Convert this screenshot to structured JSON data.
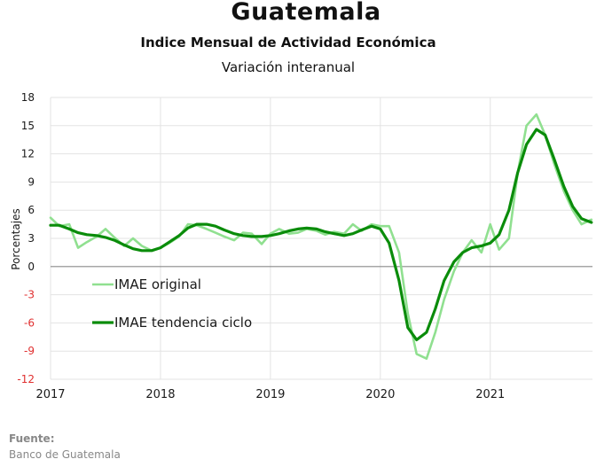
{
  "header": {
    "title": "Guatemala",
    "subtitle": "Indice Mensual de  Actividad Económica",
    "subtitle2": "Variación interanual"
  },
  "footer": {
    "source_label": "Fuente:",
    "source_text": "Banco de Guatemala"
  },
  "chart_data": {
    "type": "line",
    "ylabel": "Porcentajes",
    "ylim": [
      -12,
      18
    ],
    "yticks": [
      18,
      15,
      12,
      9,
      6,
      3,
      0,
      -3,
      -6,
      -9,
      -12
    ],
    "xlim": [
      2017.0,
      2021.93
    ],
    "xticks": [
      "2017",
      "2018",
      "2019",
      "2020",
      "2021"
    ],
    "grid": true,
    "legend_position": "lower-left",
    "series": [
      {
        "name": "IMAE original",
        "color": "#90e090",
        "x": [
          2017.0,
          2017.08,
          2017.17,
          2017.25,
          2017.33,
          2017.42,
          2017.5,
          2017.58,
          2017.67,
          2017.75,
          2017.83,
          2017.92,
          2018.0,
          2018.08,
          2018.17,
          2018.25,
          2018.33,
          2018.42,
          2018.5,
          2018.58,
          2018.67,
          2018.75,
          2018.83,
          2018.92,
          2019.0,
          2019.08,
          2019.17,
          2019.25,
          2019.33,
          2019.42,
          2019.5,
          2019.58,
          2019.67,
          2019.75,
          2019.83,
          2019.92,
          2020.0,
          2020.08,
          2020.17,
          2020.25,
          2020.33,
          2020.42,
          2020.5,
          2020.58,
          2020.67,
          2020.75,
          2020.83,
          2020.92,
          2021.0,
          2021.08,
          2021.17,
          2021.25,
          2021.33,
          2021.42,
          2021.5,
          2021.58,
          2021.67,
          2021.75,
          2021.83,
          2021.92
        ],
        "y": [
          5.2,
          4.3,
          4.5,
          2.0,
          2.6,
          3.2,
          4.0,
          3.1,
          2.2,
          3.0,
          2.2,
          1.7,
          2.0,
          2.5,
          3.2,
          4.5,
          4.4,
          4.0,
          3.6,
          3.2,
          2.8,
          3.6,
          3.5,
          2.4,
          3.5,
          4.0,
          3.5,
          3.6,
          4.0,
          3.8,
          3.4,
          3.7,
          3.5,
          4.5,
          3.8,
          4.5,
          4.3,
          4.3,
          1.5,
          -5.0,
          -9.3,
          -9.8,
          -7.0,
          -3.5,
          -0.5,
          1.5,
          2.8,
          1.5,
          4.5,
          1.8,
          3.0,
          10.0,
          15.0,
          16.2,
          14.0,
          11.0,
          8.0,
          6.0,
          4.5,
          5.0
        ]
      },
      {
        "name": "IMAE tendencia ciclo",
        "color": "#0a8c0a",
        "x": [
          2017.0,
          2017.08,
          2017.17,
          2017.25,
          2017.33,
          2017.42,
          2017.5,
          2017.58,
          2017.67,
          2017.75,
          2017.83,
          2017.92,
          2018.0,
          2018.08,
          2018.17,
          2018.25,
          2018.33,
          2018.42,
          2018.5,
          2018.58,
          2018.67,
          2018.75,
          2018.83,
          2018.92,
          2019.0,
          2019.08,
          2019.17,
          2019.25,
          2019.33,
          2019.42,
          2019.5,
          2019.58,
          2019.67,
          2019.75,
          2019.83,
          2019.92,
          2020.0,
          2020.08,
          2020.17,
          2020.25,
          2020.33,
          2020.42,
          2020.5,
          2020.58,
          2020.67,
          2020.75,
          2020.83,
          2020.92,
          2021.0,
          2021.08,
          2021.17,
          2021.25,
          2021.33,
          2021.42,
          2021.5,
          2021.58,
          2021.67,
          2021.75,
          2021.83,
          2021.92
        ],
        "y": [
          4.4,
          4.4,
          4.0,
          3.6,
          3.4,
          3.3,
          3.1,
          2.8,
          2.3,
          1.9,
          1.7,
          1.7,
          2.0,
          2.6,
          3.3,
          4.1,
          4.5,
          4.5,
          4.3,
          3.9,
          3.5,
          3.3,
          3.2,
          3.2,
          3.3,
          3.5,
          3.8,
          4.0,
          4.1,
          4.0,
          3.7,
          3.5,
          3.3,
          3.5,
          3.9,
          4.3,
          4.0,
          2.5,
          -1.5,
          -6.5,
          -7.8,
          -7.0,
          -4.5,
          -1.5,
          0.5,
          1.5,
          2.0,
          2.2,
          2.5,
          3.4,
          6.0,
          10.0,
          13.0,
          14.6,
          14.0,
          11.5,
          8.5,
          6.4,
          5.1,
          4.7
        ]
      }
    ]
  }
}
